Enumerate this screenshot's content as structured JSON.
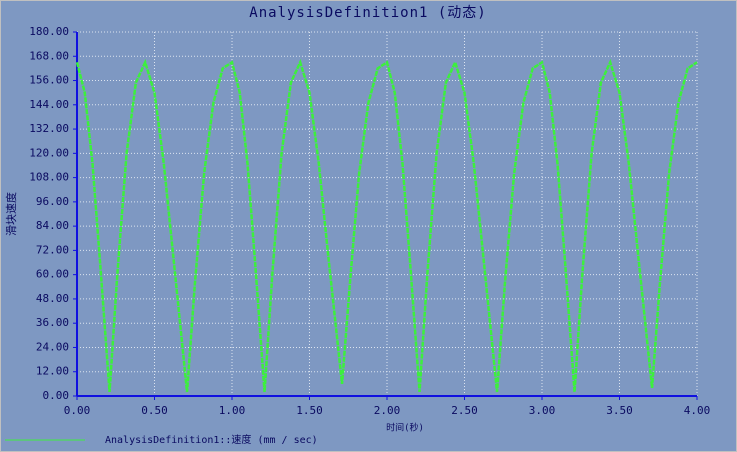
{
  "chart_data": {
    "type": "line",
    "title": "AnalysisDefinition1 (动态)",
    "x_label": "时间(秒)",
    "y_label": "滑块速度",
    "xlim": [
      0,
      4
    ],
    "ylim": [
      0,
      180
    ],
    "xticks": [
      {
        "value": 0,
        "label": "0.00"
      },
      {
        "value": 0.5,
        "label": "0.50"
      },
      {
        "value": 1,
        "label": "1.00"
      },
      {
        "value": 1.5,
        "label": "1.50"
      },
      {
        "value": 2,
        "label": "2.00"
      },
      {
        "value": 2.5,
        "label": "2.50"
      },
      {
        "value": 3,
        "label": "3.00"
      },
      {
        "value": 3.5,
        "label": "3.50"
      },
      {
        "value": 4,
        "label": "4.00"
      }
    ],
    "yticks": [
      {
        "value": 0,
        "label": "0.00"
      },
      {
        "value": 12,
        "label": "12.00"
      },
      {
        "value": 24,
        "label": "24.00"
      },
      {
        "value": 36,
        "label": "36.00"
      },
      {
        "value": 48,
        "label": "48.00"
      },
      {
        "value": 60,
        "label": "60.00"
      },
      {
        "value": 72,
        "label": "72.00"
      },
      {
        "value": 84,
        "label": "84.00"
      },
      {
        "value": 96,
        "label": "96.00"
      },
      {
        "value": 108,
        "label": "108.00"
      },
      {
        "value": 120,
        "label": "120.00"
      },
      {
        "value": 132,
        "label": "132.00"
      },
      {
        "value": 144,
        "label": "144.00"
      },
      {
        "value": 156,
        "label": "156.00"
      },
      {
        "value": 168,
        "label": "168.00"
      },
      {
        "value": 180,
        "label": "180.00"
      }
    ],
    "grid": true,
    "x": [
      0,
      0.05,
      0.1,
      0.15,
      0.21,
      0.26,
      0.32,
      0.38,
      0.44,
      0.5,
      0.56,
      0.62,
      0.71,
      0.76,
      0.82,
      0.88,
      0.94,
      1,
      1.05,
      1.1,
      1.15,
      1.21,
      1.26,
      1.32,
      1.38,
      1.44,
      1.5,
      1.56,
      1.62,
      1.71,
      1.76,
      1.82,
      1.88,
      1.94,
      2,
      2.05,
      2.1,
      2.15,
      2.21,
      2.26,
      2.32,
      2.38,
      2.44,
      2.5,
      2.56,
      2.62,
      2.71,
      2.76,
      2.82,
      2.88,
      2.94,
      3,
      3.05,
      3.1,
      3.15,
      3.21,
      3.26,
      3.32,
      3.38,
      3.44,
      3.5,
      3.56,
      3.62,
      3.71,
      3.76,
      3.82,
      3.88,
      3.94,
      4
    ],
    "series": [
      {
        "name": "AnalysisDefinition1::速度 (mm / sec)",
        "color": "#3cf03c",
        "values": [
          165,
          150,
          115,
          65,
          2,
          60,
          120,
          155,
          165,
          150,
          115,
          70,
          2,
          55,
          110,
          145,
          162,
          165,
          150,
          115,
          65,
          2,
          60,
          120,
          155,
          165,
          150,
          115,
          70,
          6,
          55,
          110,
          145,
          162,
          165,
          150,
          115,
          65,
          2,
          60,
          120,
          155,
          165,
          150,
          115,
          70,
          2,
          55,
          110,
          145,
          162,
          165,
          150,
          115,
          65,
          2,
          60,
          120,
          155,
          165,
          150,
          115,
          70,
          4,
          55,
          110,
          145,
          162,
          165
        ]
      }
    ]
  }
}
